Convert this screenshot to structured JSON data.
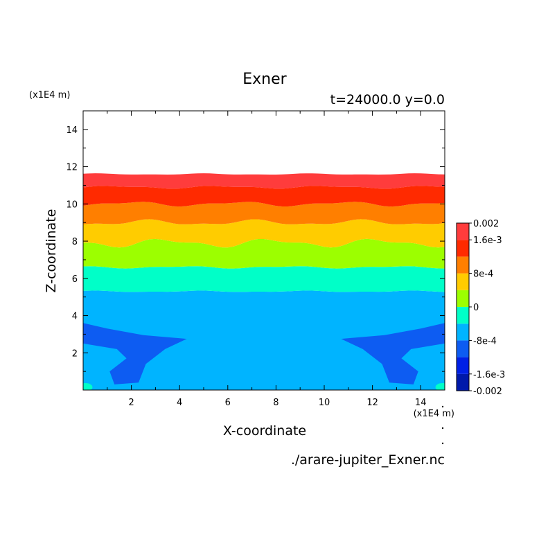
{
  "chart_data": {
    "type": "contour",
    "title": "Exner",
    "subtitle": "t=24000.0 y=0.0",
    "source_file": "./arare-jupiter_Exner.nc",
    "xlabel": "X-coordinate",
    "ylabel": "Z-coordinate",
    "x_unit": "(x1E4 m)",
    "y_unit": "(x1E4 m)",
    "xlim": [
      0,
      15
    ],
    "ylim": [
      0,
      15
    ],
    "x_ticks": [
      2,
      4,
      6,
      8,
      10,
      12,
      14
    ],
    "y_ticks": [
      2,
      4,
      6,
      8,
      10,
      12,
      14
    ],
    "x_tick_labels": [
      "2",
      "4",
      "6",
      "8",
      "10",
      "12",
      "14"
    ],
    "y_tick_labels": [
      "2",
      "4",
      "6",
      "8",
      "10",
      "12",
      "14"
    ],
    "colorbar": {
      "levels": [
        -0.002,
        -0.0016,
        -0.0012,
        -0.0008,
        -0.0004,
        0,
        0.0004,
        0.0008,
        0.0012,
        0.0016,
        0.002
      ],
      "colors": [
        "#0019aa",
        "#0020e6",
        "#0d5cf2",
        "#00b4ff",
        "#00ffc8",
        "#9cff00",
        "#ffcc00",
        "#ff7f00",
        "#ff2a00",
        "#ff3c3c"
      ],
      "labels": [
        {
          "value": 0.002,
          "text": "0.002"
        },
        {
          "value": 0.0016,
          "text": "1.6e-3"
        },
        {
          "value": 0.0008,
          "text": "8e-4"
        },
        {
          "value": 0,
          "text": "0"
        },
        {
          "value": -0.0008,
          "text": "-8e-4"
        },
        {
          "value": -0.0016,
          "text": "-1.6e-3"
        },
        {
          "value": -0.002,
          "text": "-0.002"
        }
      ]
    },
    "contour_bands": [
      {
        "lower": -0.0012,
        "upper": -0.0008,
        "color": "#0d5cf2",
        "z_bottom": 2.5,
        "z_top": 3.6,
        "note": "lobes near x=0-4 and x=11-15"
      },
      {
        "lower": -0.0008,
        "upper": -0.0004,
        "color": "#00b4ff",
        "z_bottom": 0,
        "z_top": 5.3
      },
      {
        "lower": -0.0004,
        "upper": 0,
        "color": "#00ffc8",
        "z_bottom": 5.3,
        "z_top": 6.6
      },
      {
        "lower": 0,
        "upper": 0.0004,
        "color": "#9cff00",
        "z_bottom": 6.6,
        "z_top": 7.9
      },
      {
        "lower": 0.0004,
        "upper": 0.0008,
        "color": "#ffcc00",
        "z_bottom": 7.9,
        "z_top": 9.0
      },
      {
        "lower": 0.0008,
        "upper": 0.0012,
        "color": "#ff7f00",
        "z_bottom": 9.0,
        "z_top": 10.0
      },
      {
        "lower": 0.0012,
        "upper": 0.0016,
        "color": "#ff2a00",
        "z_bottom": 10.0,
        "z_top": 10.9
      },
      {
        "lower": 0.0016,
        "upper": 0.002,
        "color": "#ff3c3c",
        "z_bottom": 10.9,
        "z_top": 11.6
      }
    ]
  }
}
